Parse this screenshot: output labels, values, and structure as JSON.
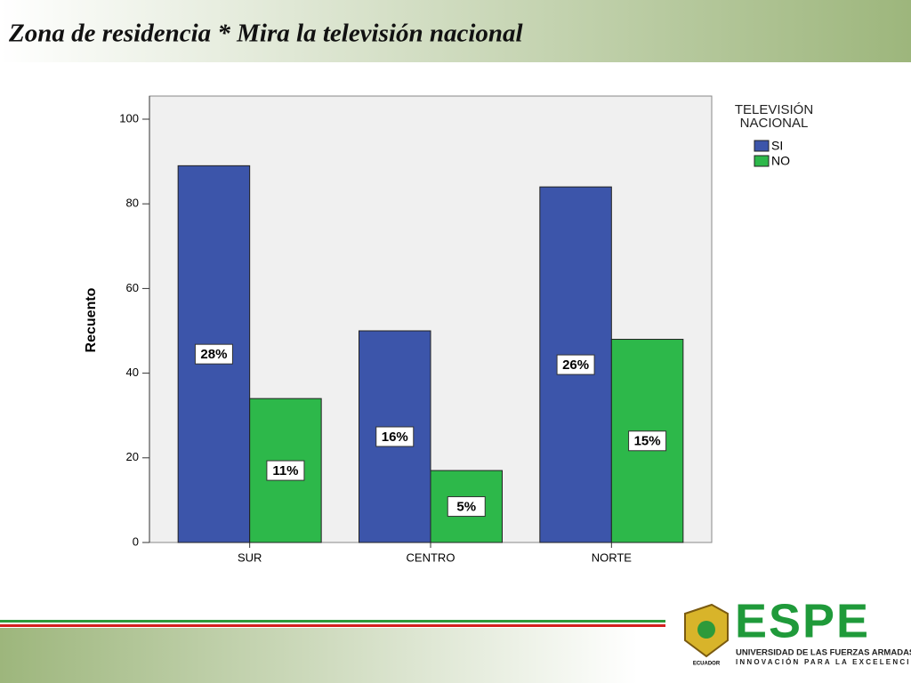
{
  "chart_data": {
    "type": "bar",
    "title": "Zona de residencia * Mira la televisión nacional",
    "y_label": "Recuento",
    "legend_title": "TELEVISIÓN NACIONAL",
    "categories": [
      "SUR",
      "CENTRO",
      "NORTE"
    ],
    "series": [
      {
        "name": "SI",
        "color": "#3c55aa",
        "values": [
          89,
          50,
          84
        ],
        "value_labels": [
          "28%",
          "16%",
          "26%"
        ]
      },
      {
        "name": "NO",
        "color": "#2db84a",
        "values": [
          34,
          17,
          48
        ],
        "value_labels": [
          "11%",
          "5%",
          "15%"
        ]
      }
    ],
    "ylim": [
      0,
      100
    ],
    "yticks": [
      0,
      20,
      40,
      60,
      80,
      100
    ],
    "grid": false,
    "legend": "right"
  },
  "logo": {
    "name": "ESPE",
    "subtitle": "UNIVERSIDAD DE LAS FUERZAS ARMADAS",
    "motto": "INNOVACIÓN PARA LA EXCELENCIA",
    "country": "ECUADOR"
  }
}
